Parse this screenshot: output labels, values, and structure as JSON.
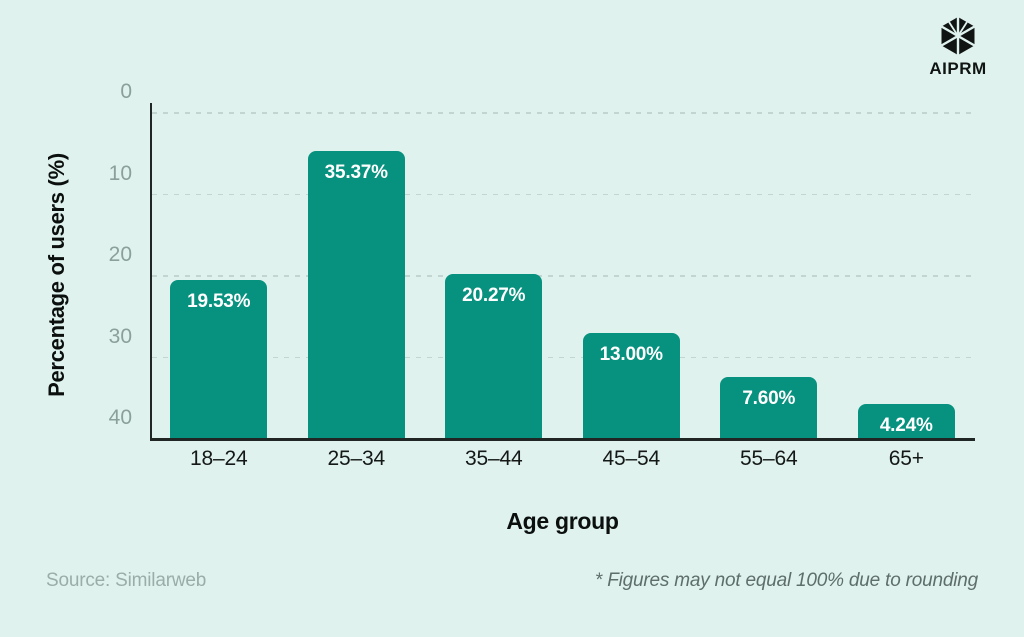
{
  "logo": {
    "brand": "AIPRM",
    "icon": "aiprm-hexagon-icon"
  },
  "chart_data": {
    "type": "bar",
    "categories": [
      "18–24",
      "25–34",
      "35–44",
      "45–54",
      "55–64",
      "65+"
    ],
    "values": [
      19.53,
      35.37,
      20.27,
      13.0,
      7.6,
      4.24
    ],
    "value_labels": [
      "19.53%",
      "35.37%",
      "20.27%",
      "13.00%",
      "7.60%",
      "4.24%"
    ],
    "xlabel": "Age group",
    "ylabel": "Percentage of users (%)",
    "ylim": [
      0,
      40
    ],
    "yticks": [
      0,
      10,
      20,
      30,
      40
    ],
    "grid": "horizontal-dashed",
    "legend": "none",
    "bar_color": "#07917f",
    "value_label_color": "#ffffff"
  },
  "footer": {
    "source": "Source: Similarweb",
    "note": "* Figures may not equal 100% due to rounding"
  },
  "colors": {
    "background": "#dff2ee",
    "bar": "#07917f",
    "axis": "#202623",
    "grid": "#c2d5d0",
    "tick_text": "#8ba09a"
  }
}
